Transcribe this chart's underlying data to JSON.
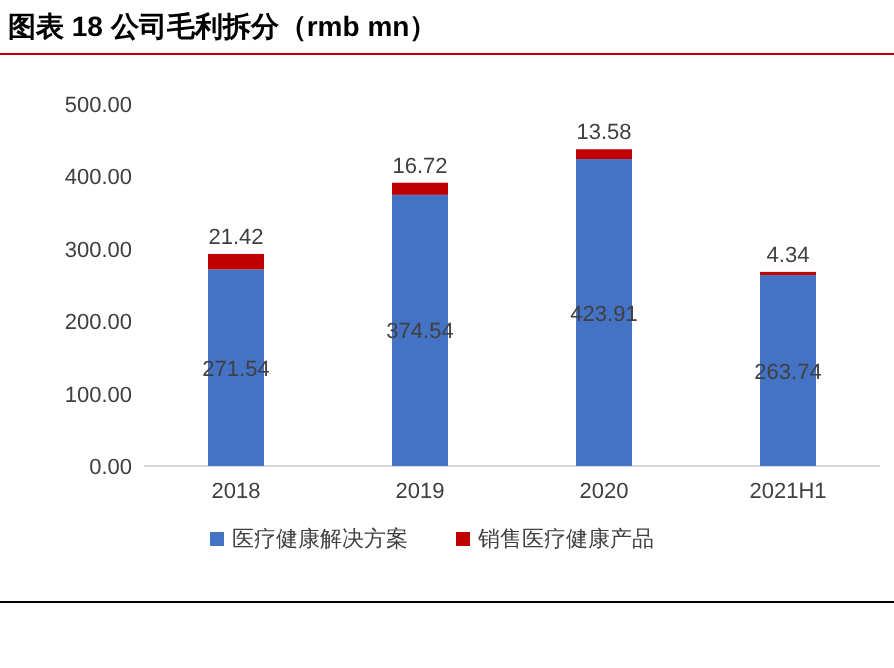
{
  "chart_data": {
    "type": "bar",
    "title": "图表 18 公司毛利拆分（rmb mn）",
    "stacked": true,
    "data_labels": true,
    "legend": "bottom",
    "categories": [
      "2018",
      "2019",
      "2020",
      "2021H1"
    ],
    "ylim": [
      0,
      500
    ],
    "yticks": [
      {
        "value": 0,
        "label": "0.00"
      },
      {
        "value": 100,
        "label": "100.00"
      },
      {
        "value": 200,
        "label": "200.00"
      },
      {
        "value": 300,
        "label": "300.00"
      },
      {
        "value": 400,
        "label": "400.00"
      },
      {
        "value": 500,
        "label": "500.00"
      }
    ],
    "series": [
      {
        "name": "医疗健康解决方案",
        "color": "#4472c4",
        "values": [
          271.54,
          374.54,
          423.91,
          263.74
        ]
      },
      {
        "name": "销售医疗健康产品",
        "color": "#c00000",
        "values": [
          21.42,
          16.72,
          13.58,
          4.34
        ]
      }
    ]
  }
}
